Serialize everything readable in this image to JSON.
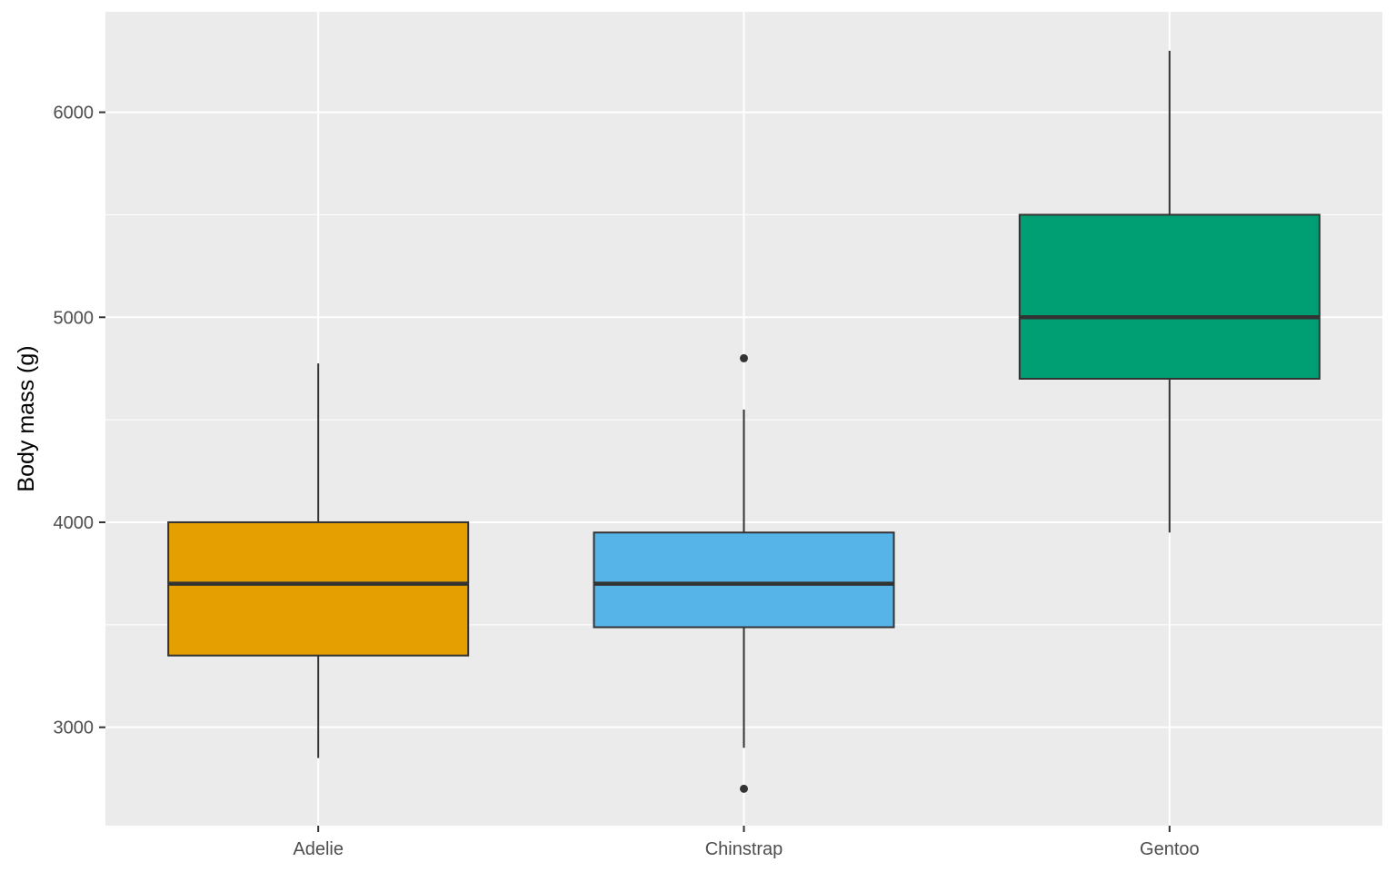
{
  "chart_data": {
    "type": "boxplot",
    "title": "",
    "xlabel": "",
    "ylabel": "Body mass (g)",
    "ylim": [
      2520,
      6490
    ],
    "yticks": [
      3000,
      4000,
      5000,
      6000
    ],
    "y_minor_ticks": [
      3500,
      4500,
      5500
    ],
    "grid": true,
    "legend": "none",
    "categories": [
      "Adelie",
      "Chinstrap",
      "Gentoo"
    ],
    "boxes": [
      {
        "category": "Adelie",
        "whisker_low": 2850,
        "q1": 3350,
        "median": 3700,
        "q3": 4000,
        "whisker_high": 4775,
        "outliers": [],
        "color": "#E69F00"
      },
      {
        "category": "Chinstrap",
        "whisker_low": 2900,
        "q1": 3488,
        "median": 3700,
        "q3": 3950,
        "whisker_high": 4550,
        "outliers": [
          2700,
          4800
        ],
        "color": "#56B4E9"
      },
      {
        "category": "Gentoo",
        "whisker_low": 3950,
        "q1": 4700,
        "median": 5000,
        "q3": 5500,
        "whisker_high": 6300,
        "outliers": [],
        "color": "#009E73"
      }
    ],
    "colors": {
      "panel": "#EBEBEB",
      "grid": "#FFFFFF",
      "box_line": "#333333",
      "tick": "#333333"
    }
  }
}
